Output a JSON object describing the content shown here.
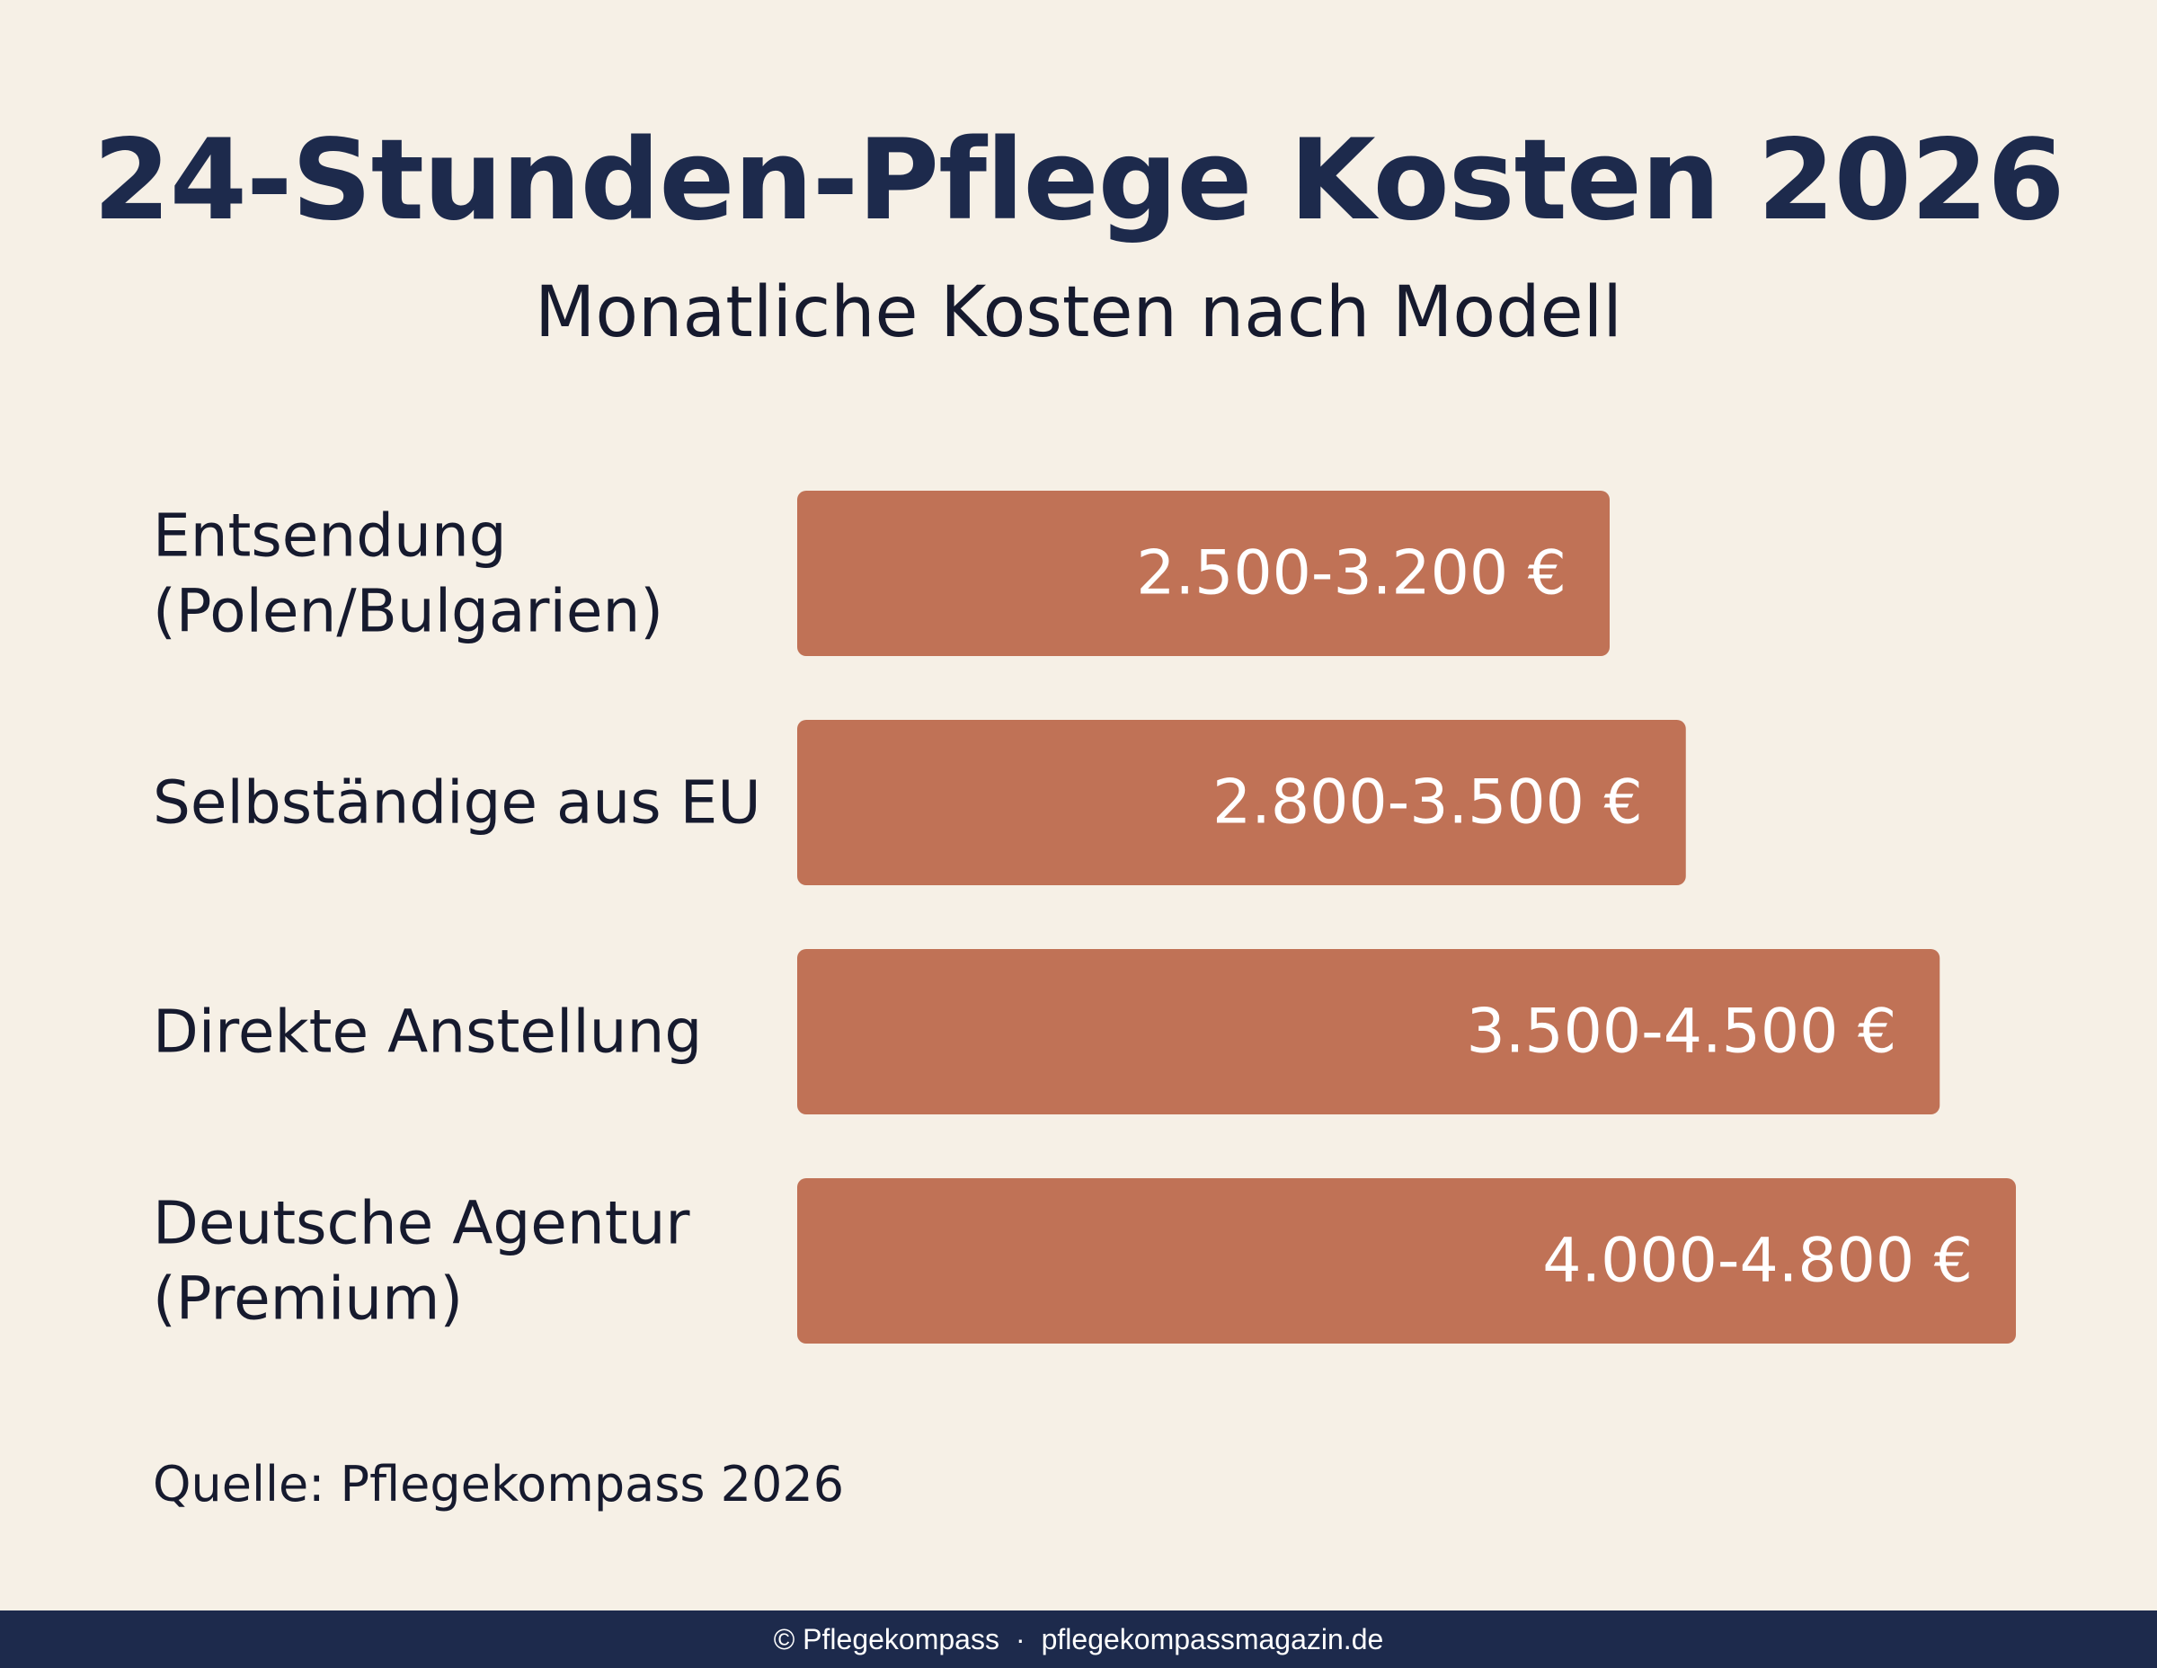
{
  "header": {
    "title": "24-Stunden-Pflege Kosten 2026",
    "subtitle": "Monatliche Kosten nach Modell"
  },
  "source": "Quelle: Pflegekompass 2026",
  "footer": {
    "copyright": "© Pflegekompass",
    "separator": "·",
    "site": "pflegekompassmagazin.de"
  },
  "colors": {
    "background": "#f6f0e6",
    "bar": "#c07256",
    "title": "#1d2a4c",
    "footer": "#1d2a4c"
  },
  "chart_data": {
    "type": "bar",
    "orientation": "horizontal",
    "title": "24-Stunden-Pflege Kosten 2026",
    "subtitle": "Monatliche Kosten nach Modell",
    "categories": [
      [
        "Entsendung",
        "(Polen/Bulgarien)"
      ],
      [
        "Selbständige aus EU"
      ],
      [
        "Direkte Anstellung"
      ],
      [
        "Deutsche Agentur",
        "(Premium)"
      ]
    ],
    "ranges": [
      [
        2500,
        3200
      ],
      [
        2800,
        3500
      ],
      [
        3500,
        4500
      ],
      [
        4000,
        4800
      ]
    ],
    "values": [
      3200,
      3500,
      4500,
      4800
    ],
    "labels": [
      "2.500-3.200 €",
      "2.800-3.500 €",
      "3.500-4.500 €",
      "4.000-4.800 €"
    ],
    "unit": "€",
    "grid": false,
    "legend": "none"
  }
}
